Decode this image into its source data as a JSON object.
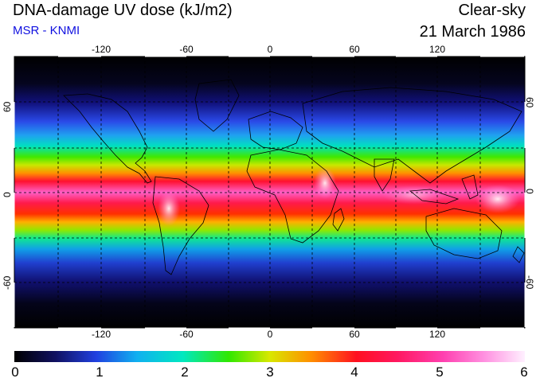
{
  "header": {
    "title": "DNA-damage UV dose (kJ/m2)",
    "subtitle": "MSR - KNMI",
    "condition": "Clear-sky",
    "date": "21 March 1986"
  },
  "map": {
    "lon_ticks": [
      "-120",
      "-60",
      "0",
      "60",
      "120"
    ],
    "lat_ticks_left": [
      "60",
      "0",
      "-60"
    ],
    "lat_ticks_right": [
      "60",
      "0",
      "-60"
    ]
  },
  "colorbar": {
    "labels": [
      "0",
      "1",
      "2",
      "3",
      "4",
      "5",
      "6"
    ]
  }
}
